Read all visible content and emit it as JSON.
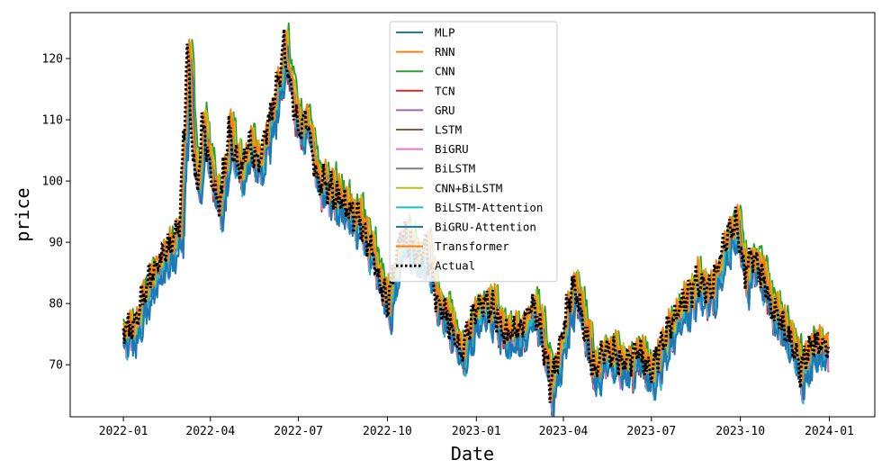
{
  "chart_data": {
    "type": "line",
    "title": "",
    "xlabel": "Date",
    "ylabel": "price",
    "x_ticks": [
      "2022-01",
      "2022-04",
      "2022-07",
      "2022-10",
      "2023-01",
      "2023-04",
      "2023-07",
      "2023-10",
      "2024-01"
    ],
    "y_ticks": [
      70,
      80,
      90,
      100,
      110,
      120
    ],
    "xlim": [
      "2021-11-07",
      "2024-02-17"
    ],
    "ylim": [
      61.5,
      127.5
    ],
    "grid": false,
    "legend_position": "top-center",
    "actual": {
      "name": "Actual",
      "style": "dotted",
      "color": "#000000",
      "points": [
        [
          "2022-01-01",
          76
        ],
        [
          "2022-01-10",
          75.5
        ],
        [
          "2022-01-20",
          80.5
        ],
        [
          "2022-02-01",
          85.5
        ],
        [
          "2022-02-10",
          87.5
        ],
        [
          "2022-02-20",
          90
        ],
        [
          "2022-02-28",
          93
        ],
        [
          "2022-03-02",
          101
        ],
        [
          "2022-03-05",
          109
        ],
        [
          "2022-03-08",
          123.5
        ],
        [
          "2022-03-12",
          108
        ],
        [
          "2022-03-18",
          98
        ],
        [
          "2022-03-24",
          110
        ],
        [
          "2022-04-01",
          101
        ],
        [
          "2022-04-10",
          95.5
        ],
        [
          "2022-04-20",
          108
        ],
        [
          "2022-05-01",
          101
        ],
        [
          "2022-05-10",
          106
        ],
        [
          "2022-05-20",
          103
        ],
        [
          "2022-06-01",
          110
        ],
        [
          "2022-06-10",
          117
        ],
        [
          "2022-06-16",
          122
        ],
        [
          "2022-06-22",
          116
        ],
        [
          "2022-07-01",
          108
        ],
        [
          "2022-07-10",
          110.5
        ],
        [
          "2022-07-20",
          100
        ],
        [
          "2022-08-01",
          99
        ],
        [
          "2022-08-15",
          96
        ],
        [
          "2022-09-01",
          94
        ],
        [
          "2022-09-15",
          88
        ],
        [
          "2022-10-01",
          80
        ],
        [
          "2022-10-15",
          91.5
        ],
        [
          "2022-11-01",
          87.5
        ],
        [
          "2022-11-10",
          90
        ],
        [
          "2022-11-20",
          80
        ],
        [
          "2022-12-01",
          78.5
        ],
        [
          "2022-12-15",
          71.5
        ],
        [
          "2023-01-01",
          80
        ],
        [
          "2023-01-15",
          80
        ],
        [
          "2023-02-01",
          75
        ],
        [
          "2023-02-15",
          76
        ],
        [
          "2023-03-01",
          80
        ],
        [
          "2023-03-10",
          74
        ],
        [
          "2023-03-18",
          66.5
        ],
        [
          "2023-04-01",
          76
        ],
        [
          "2023-04-10",
          83
        ],
        [
          "2023-04-20",
          78
        ],
        [
          "2023-05-01",
          69
        ],
        [
          "2023-05-15",
          73
        ],
        [
          "2023-06-01",
          70
        ],
        [
          "2023-06-15",
          72.5
        ],
        [
          "2023-07-01",
          68.5
        ],
        [
          "2023-07-15",
          75
        ],
        [
          "2023-08-01",
          80
        ],
        [
          "2023-08-15",
          83
        ],
        [
          "2023-09-01",
          82
        ],
        [
          "2023-09-15",
          90
        ],
        [
          "2023-09-27",
          93.5
        ],
        [
          "2023-10-05",
          85
        ],
        [
          "2023-10-15",
          88
        ],
        [
          "2023-11-01",
          80
        ],
        [
          "2023-11-15",
          76
        ],
        [
          "2023-12-01",
          69.5
        ],
        [
          "2023-12-15",
          74
        ],
        [
          "2023-12-31",
          73
        ]
      ]
    },
    "series": [
      {
        "name": "MLP",
        "color": "#1f77b4",
        "offset": -1.3,
        "lag": 3
      },
      {
        "name": "RNN",
        "color": "#ff7f0e",
        "offset": -0.3,
        "lag": 1
      },
      {
        "name": "CNN",
        "color": "#2ca02c",
        "offset": 0.9,
        "lag": 5
      },
      {
        "name": "TCN",
        "color": "#d62728",
        "offset": -1.9,
        "lag": 2
      },
      {
        "name": "GRU",
        "color": "#9467bd",
        "offset": -0.6,
        "lag": 2
      },
      {
        "name": "LSTM",
        "color": "#8c564b",
        "offset": -1.1,
        "lag": 3
      },
      {
        "name": "BiGRU",
        "color": "#e377c2",
        "offset": -1.6,
        "lag": 2
      },
      {
        "name": "BiLSTM",
        "color": "#7f7f7f",
        "offset": -0.9,
        "lag": 3
      },
      {
        "name": "CNN+BiLSTM",
        "color": "#bcbd22",
        "offset": 0.3,
        "lag": 4
      },
      {
        "name": "BiLSTM-Attention",
        "color": "#17becf",
        "offset": -2.1,
        "lag": 3
      },
      {
        "name": "BiGRU-Attention",
        "color": "#1f77b4",
        "offset": -2.6,
        "lag": 4
      },
      {
        "name": "Transformer",
        "color": "#ff7f0e",
        "offset": 0.5,
        "lag": 2
      }
    ]
  }
}
